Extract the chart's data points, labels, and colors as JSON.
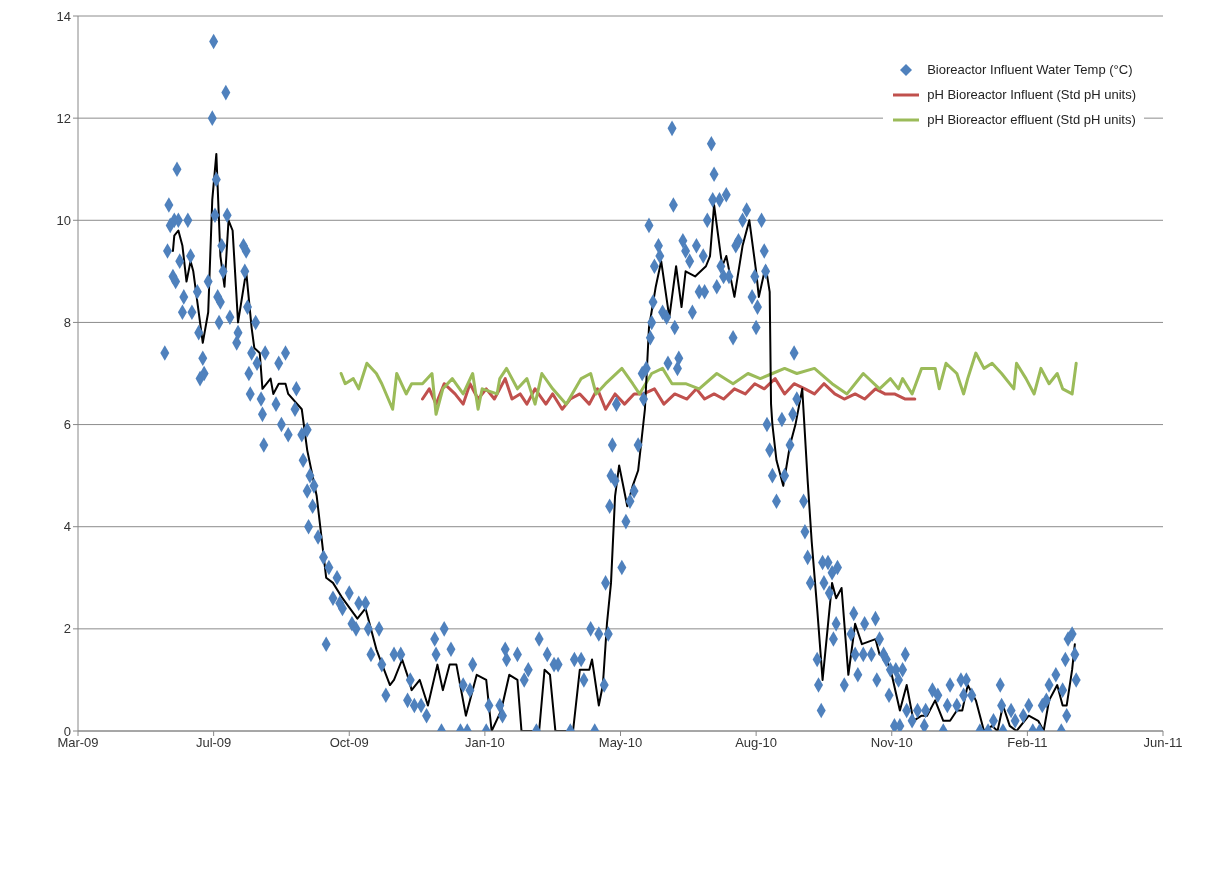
{
  "chart_data": {
    "type": "scatter",
    "xlim": [
      "2009-03-28",
      "2011-06-06"
    ],
    "xticks": [
      {
        "value": "2009-03-28",
        "label": "Mar-09"
      },
      {
        "value": "2009-07-06",
        "label": "Jul-09"
      },
      {
        "value": "2009-10-14",
        "label": "Oct-09"
      },
      {
        "value": "2010-01-22",
        "label": "Jan-10"
      },
      {
        "value": "2010-05-02",
        "label": "May-10"
      },
      {
        "value": "2010-08-10",
        "label": "Aug-10"
      },
      {
        "value": "2010-11-18",
        "label": "Nov-10"
      },
      {
        "value": "2011-02-26",
        "label": "Feb-11"
      },
      {
        "value": "2011-06-06",
        "label": "Jun-11"
      }
    ],
    "ylim": [
      0,
      14
    ],
    "yticks": [
      0,
      2,
      4,
      6,
      8,
      10,
      12,
      14
    ],
    "grid": "y",
    "legend": "top right",
    "series": [
      {
        "name": "Bioreactor Influent Water Temp (°C)",
        "color": "#4f81bd",
        "marker": "diamond",
        "x": [
          "2009-05-31",
          "2009-06-02",
          "2009-06-03",
          "2009-06-04",
          "2009-06-06",
          "2009-06-07",
          "2009-06-08",
          "2009-06-09",
          "2009-06-10",
          "2009-06-11",
          "2009-06-13",
          "2009-06-14",
          "2009-06-17",
          "2009-06-19",
          "2009-06-20",
          "2009-06-24",
          "2009-06-25",
          "2009-06-26",
          "2009-06-28",
          "2009-06-29",
          "2009-07-02",
          "2009-07-05",
          "2009-07-06",
          "2009-07-07",
          "2009-07-08",
          "2009-07-09",
          "2009-07-10",
          "2009-07-11",
          "2009-07-12",
          "2009-07-13",
          "2009-07-15",
          "2009-07-16",
          "2009-07-18",
          "2009-07-23",
          "2009-07-24",
          "2009-07-28",
          "2009-07-29",
          "2009-07-30",
          "2009-07-31",
          "2009-08-01",
          "2009-08-02",
          "2009-08-03",
          "2009-08-06",
          "2009-08-07",
          "2009-08-10",
          "2009-08-11",
          "2009-08-12",
          "2009-08-13",
          "2009-08-21",
          "2009-08-23",
          "2009-08-25",
          "2009-08-28",
          "2009-08-30",
          "2009-09-04",
          "2009-09-05",
          "2009-09-09",
          "2009-09-10",
          "2009-09-13",
          "2009-09-13",
          "2009-09-14",
          "2009-09-15",
          "2009-09-17",
          "2009-09-18",
          "2009-09-21",
          "2009-09-25",
          "2009-09-27",
          "2009-09-29",
          "2009-10-02",
          "2009-10-05",
          "2009-10-07",
          "2009-10-09",
          "2009-10-14",
          "2009-10-16",
          "2009-10-19",
          "2009-10-21",
          "2009-10-26",
          "2009-10-28",
          "2009-10-30",
          "2009-11-05",
          "2009-11-07",
          "2009-11-10",
          "2009-11-16",
          "2009-11-21",
          "2009-11-26",
          "2009-11-28",
          "2009-12-01",
          "2009-12-06",
          "2009-12-10",
          "2009-12-16",
          "2009-12-17",
          "2009-12-21",
          "2009-12-23",
          "2009-12-28",
          "2010-01-04",
          "2010-01-06",
          "2010-01-09",
          "2010-01-11",
          "2010-01-13",
          "2010-01-23",
          "2010-01-25",
          "2010-02-02",
          "2010-02-04",
          "2010-02-06",
          "2010-02-07",
          "2010-02-15",
          "2010-02-20",
          "2010-02-23",
          "2010-03-01",
          "2010-03-03",
          "2010-03-09",
          "2010-03-14",
          "2010-03-17",
          "2010-03-26",
          "2010-03-29",
          "2010-04-03",
          "2010-04-05",
          "2010-04-10",
          "2010-04-13",
          "2010-04-16",
          "2010-04-20",
          "2010-04-21",
          "2010-04-23",
          "2010-04-24",
          "2010-04-25",
          "2010-04-26",
          "2010-04-28",
          "2010-04-29",
          "2010-05-03",
          "2010-05-06",
          "2010-05-09",
          "2010-05-12",
          "2010-05-15",
          "2010-05-18",
          "2010-05-19",
          "2010-05-21",
          "2010-05-23",
          "2010-05-24",
          "2010-05-25",
          "2010-05-26",
          "2010-05-27",
          "2010-05-30",
          "2010-05-31",
          "2010-06-02",
          "2010-06-05",
          "2010-06-06",
          "2010-06-09",
          "2010-06-10",
          "2010-06-11",
          "2010-06-13",
          "2010-06-14",
          "2010-06-17",
          "2010-06-19",
          "2010-06-22",
          "2010-06-24",
          "2010-06-27",
          "2010-06-29",
          "2010-07-02",
          "2010-07-03",
          "2010-07-05",
          "2010-07-08",
          "2010-07-09",
          "2010-07-10",
          "2010-07-12",
          "2010-07-14",
          "2010-07-15",
          "2010-07-17",
          "2010-07-19",
          "2010-07-21",
          "2010-07-24",
          "2010-07-26",
          "2010-07-28",
          "2010-07-31",
          "2010-08-03",
          "2010-08-07",
          "2010-08-09",
          "2010-08-10",
          "2010-08-11",
          "2010-08-14",
          "2010-08-16",
          "2010-08-17",
          "2010-08-18",
          "2010-08-20",
          "2010-08-22",
          "2010-08-25",
          "2010-08-29",
          "2010-08-31",
          "2010-09-04",
          "2010-09-06",
          "2010-09-07",
          "2010-09-09",
          "2010-09-14",
          "2010-09-15",
          "2010-09-17",
          "2010-09-19",
          "2010-09-24",
          "2010-09-25",
          "2010-09-27",
          "2010-09-28",
          "2010-09-29",
          "2010-10-02",
          "2010-10-03",
          "2010-10-05",
          "2010-10-06",
          "2010-10-08",
          "2010-10-09",
          "2010-10-14",
          "2010-10-19",
          "2010-10-21",
          "2010-10-22",
          "2010-10-24",
          "2010-10-28",
          "2010-10-29",
          "2010-11-03",
          "2010-11-06",
          "2010-11-07",
          "2010-11-09",
          "2010-11-12",
          "2010-11-14",
          "2010-11-16",
          "2010-11-17",
          "2010-11-20",
          "2010-11-21",
          "2010-11-23",
          "2010-11-24",
          "2010-11-26",
          "2010-11-28",
          "2010-11-29",
          "2010-12-03",
          "2010-12-07",
          "2010-12-12",
          "2010-12-13",
          "2010-12-18",
          "2010-12-22",
          "2010-12-26",
          "2010-12-29",
          "2010-12-31",
          "2011-01-05",
          "2011-01-08",
          "2011-01-10",
          "2011-01-12",
          "2011-01-16",
          "2011-01-22",
          "2011-01-28",
          "2011-02-01",
          "2011-02-06",
          "2011-02-07",
          "2011-02-08",
          "2011-02-14",
          "2011-02-17",
          "2011-02-23",
          "2011-02-27",
          "2011-03-02",
          "2011-03-07",
          "2011-03-09",
          "2011-03-12",
          "2011-03-14",
          "2011-03-19",
          "2011-03-23",
          "2011-03-24",
          "2011-03-26",
          "2011-03-27",
          "2011-03-28",
          "2011-03-31",
          "2011-04-02",
          "2011-04-03"
        ],
        "values": [
          7.4,
          9.4,
          10.3,
          9.9,
          8.9,
          10.0,
          8.8,
          11.0,
          10.0,
          9.2,
          8.2,
          8.5,
          10.0,
          9.3,
          8.2,
          8.6,
          7.8,
          6.9,
          7.3,
          7.0,
          8.8,
          12.0,
          13.5,
          10.1,
          10.8,
          8.5,
          8.0,
          8.4,
          9.5,
          9.0,
          12.5,
          10.1,
          8.1,
          7.6,
          7.8,
          9.5,
          9.0,
          9.4,
          8.3,
          7.0,
          6.6,
          7.4,
          8.0,
          7.2,
          6.5,
          6.2,
          5.6,
          7.4,
          6.4,
          7.2,
          6.0,
          7.4,
          5.8,
          6.3,
          6.7,
          5.8,
          5.3,
          5.9,
          4.7,
          4.0,
          5.0,
          4.4,
          4.8,
          3.8,
          3.4,
          1.7,
          3.2,
          2.6,
          3.0,
          2.5,
          2.4,
          2.7,
          2.1,
          2.0,
          2.5,
          2.5,
          2.0,
          1.5,
          2.0,
          1.3,
          0.7,
          1.5,
          1.5,
          0.6,
          1.0,
          0.5,
          0.5,
          0.3,
          1.8,
          1.5,
          0.0,
          2.0,
          1.6,
          0.0,
          0.9,
          0.0,
          0.8,
          1.3,
          0.0,
          0.5,
          0.5,
          0.3,
          1.6,
          1.4,
          1.5,
          1.0,
          1.2,
          0.0,
          1.8,
          1.5,
          1.3,
          1.3,
          0.0,
          1.4,
          1.4,
          1.0,
          2.0,
          0.0,
          1.9,
          0.9,
          2.9,
          1.9,
          4.4,
          5.0,
          5.6,
          4.9,
          6.4,
          3.2,
          4.1,
          4.5,
          4.7,
          5.6,
          7.0,
          6.5,
          7.1,
          9.9,
          7.7,
          8.0,
          8.4,
          9.1,
          9.5,
          9.3,
          8.2,
          8.1,
          7.2,
          11.8,
          10.3,
          7.9,
          7.1,
          7.3,
          9.6,
          9.4,
          9.2,
          8.2,
          9.5,
          8.6,
          9.3,
          8.6,
          10.0,
          11.5,
          10.4,
          10.9,
          8.7,
          10.4,
          9.1,
          8.9,
          10.5,
          8.9,
          7.7,
          9.5,
          9.6,
          10.0,
          10.2,
          8.5,
          8.9,
          7.9,
          8.3,
          10.0,
          9.4,
          9.0,
          6.0,
          5.5,
          5.0,
          4.5,
          6.1,
          5.0,
          5.6,
          6.2,
          7.4,
          6.5,
          4.5,
          3.9,
          3.4,
          2.9,
          1.4,
          0.9,
          0.4,
          3.3,
          2.9,
          3.3,
          2.7,
          3.1,
          1.8,
          2.1,
          3.2,
          0.9,
          1.9,
          2.3,
          1.5,
          1.1,
          1.5,
          2.1,
          1.5,
          2.2,
          1.0,
          1.8,
          1.5,
          1.4,
          0.7,
          1.2,
          0.1,
          1.2,
          1.0,
          0.1,
          1.2,
          1.5,
          0.4,
          0.2,
          0.4,
          0.1,
          0.4,
          0.8,
          0.7,
          0.0,
          0.5,
          0.9,
          0.5,
          1.0,
          0.7,
          1.0,
          0.7,
          0.0,
          0.0,
          0.2,
          0.9,
          0.5,
          0.0,
          0.4,
          0.2,
          0.3,
          0.5,
          0.0,
          0.0,
          0.5,
          0.6,
          0.9,
          1.1,
          0.0,
          0.8,
          1.4,
          0.3,
          1.8,
          1.9,
          1.5,
          1.0
        ]
      },
      {
        "type": "line",
        "name": "pH Bioreactor Influent (Std pH units)",
        "color": "#c0504d",
        "marker": "none",
        "x": [
          "2009-12-07",
          "2009-12-12",
          "2009-12-17",
          "2009-12-23",
          "2009-12-31",
          "2010-01-06",
          "2010-01-11",
          "2010-01-17",
          "2010-01-23",
          "2010-01-29",
          "2010-02-06",
          "2010-02-11",
          "2010-02-17",
          "2010-02-22",
          "2010-02-28",
          "2010-03-08",
          "2010-03-13",
          "2010-03-20",
          "2010-03-26",
          "2010-04-02",
          "2010-04-09",
          "2010-04-15",
          "2010-04-21",
          "2010-04-28",
          "2010-05-05",
          "2010-05-12",
          "2010-05-19",
          "2010-05-27",
          "2010-06-03",
          "2010-06-11",
          "2010-06-20",
          "2010-06-27",
          "2010-07-03",
          "2010-07-10",
          "2010-07-17",
          "2010-07-25",
          "2010-08-02",
          "2010-08-09",
          "2010-08-16",
          "2010-08-24",
          "2010-08-31",
          "2010-09-07",
          "2010-09-15",
          "2010-09-22",
          "2010-09-29",
          "2010-10-07",
          "2010-10-14",
          "2010-10-22",
          "2010-10-29",
          "2010-11-06",
          "2010-11-13",
          "2010-11-20",
          "2010-11-28",
          "2010-12-05"
        ],
        "values": [
          6.5,
          6.7,
          6.4,
          6.8,
          6.6,
          6.4,
          6.8,
          6.5,
          6.7,
          6.5,
          6.9,
          6.5,
          6.6,
          6.4,
          6.7,
          6.4,
          6.6,
          6.3,
          6.5,
          6.6,
          6.4,
          6.7,
          6.3,
          6.6,
          6.4,
          6.6,
          6.6,
          6.7,
          6.4,
          6.6,
          6.5,
          6.7,
          6.5,
          6.6,
          6.5,
          6.7,
          6.6,
          6.8,
          6.7,
          6.9,
          6.6,
          6.8,
          6.7,
          6.6,
          6.8,
          6.6,
          6.5,
          6.6,
          6.5,
          6.7,
          6.6,
          6.6,
          6.5,
          6.5
        ]
      },
      {
        "type": "line",
        "name": "pH Bioreactor effluent (Std pH units)",
        "color": "#9bbb59",
        "marker": "none",
        "x": [
          "2009-10-08",
          "2009-10-11",
          "2009-10-17",
          "2009-10-21",
          "2009-10-27",
          "2009-11-03",
          "2009-11-07",
          "2009-11-15",
          "2009-11-18",
          "2009-11-25",
          "2009-11-29",
          "2009-12-07",
          "2009-12-14",
          "2009-12-17",
          "2009-12-22",
          "2009-12-29",
          "2010-01-06",
          "2010-01-13",
          "2010-01-17",
          "2010-01-20",
          "2010-01-31",
          "2010-02-02",
          "2010-02-07",
          "2010-02-15",
          "2010-02-22",
          "2010-02-28",
          "2010-03-05",
          "2010-03-13",
          "2010-03-23",
          "2010-04-03",
          "2010-04-10",
          "2010-04-14",
          "2010-04-21",
          "2010-05-03",
          "2010-05-11",
          "2010-05-16",
          "2010-05-25",
          "2010-06-02",
          "2010-06-09",
          "2010-06-19",
          "2010-06-29",
          "2010-07-12",
          "2010-07-24",
          "2010-08-04",
          "2010-08-13",
          "2010-08-22",
          "2010-08-31",
          "2010-09-09",
          "2010-09-22",
          "2010-10-05",
          "2010-10-16",
          "2010-10-28",
          "2010-11-09",
          "2010-11-17",
          "2010-11-23",
          "2010-11-26",
          "2010-12-03",
          "2010-12-10",
          "2010-12-20",
          "2010-12-23",
          "2010-12-28",
          "2011-01-05",
          "2011-01-10",
          "2011-01-13",
          "2011-01-19",
          "2011-01-25",
          "2011-01-31",
          "2011-02-07",
          "2011-02-16",
          "2011-02-18",
          "2011-02-25",
          "2011-03-03",
          "2011-03-08",
          "2011-03-14",
          "2011-03-20",
          "2011-03-24",
          "2011-03-31",
          "2011-04-03"
        ],
        "values": [
          7.0,
          6.8,
          6.9,
          6.7,
          7.2,
          7.0,
          6.8,
          6.3,
          7.0,
          6.6,
          6.8,
          6.8,
          7.0,
          6.2,
          6.7,
          6.9,
          6.6,
          7.0,
          6.3,
          6.7,
          6.6,
          6.9,
          7.1,
          6.7,
          6.9,
          6.4,
          7.0,
          6.7,
          6.4,
          6.9,
          7.0,
          6.6,
          6.8,
          7.1,
          6.8,
          6.6,
          7.0,
          7.1,
          6.8,
          6.8,
          6.7,
          7.0,
          6.8,
          7.0,
          6.9,
          7.0,
          7.1,
          7.0,
          7.1,
          6.8,
          6.6,
          7.0,
          6.7,
          6.9,
          6.7,
          6.9,
          6.6,
          7.1,
          7.1,
          6.7,
          7.2,
          7.0,
          6.6,
          6.9,
          7.4,
          7.1,
          7.2,
          7.0,
          6.7,
          7.2,
          6.9,
          6.6,
          7.1,
          6.8,
          7.0,
          6.7,
          6.6,
          7.2
        ]
      },
      {
        "type": "line",
        "color": "#000000",
        "marker": "none",
        "x": [
          "2009-06-06",
          "2009-06-07",
          "2009-06-10",
          "2009-06-13",
          "2009-06-16",
          "2009-06-19",
          "2009-06-21",
          "2009-06-28",
          "2009-07-02",
          "2009-07-05",
          "2009-07-08",
          "2009-07-11",
          "2009-07-14",
          "2009-07-17",
          "2009-07-20",
          "2009-07-24",
          "2009-07-30",
          "2009-08-03",
          "2009-08-05",
          "2009-08-09",
          "2009-08-11",
          "2009-08-17",
          "2009-08-19",
          "2009-08-23",
          "2009-08-28",
          "2009-08-30",
          "2009-09-09",
          "2009-09-13",
          "2009-09-20",
          "2009-09-27",
          "2009-10-02",
          "2009-10-09",
          "2009-10-20",
          "2009-10-26",
          "2009-11-03",
          "2009-11-13",
          "2009-11-16",
          "2009-11-22",
          "2009-11-27",
          "2009-11-29",
          "2009-12-05",
          "2009-12-11",
          "2009-12-18",
          "2009-12-22",
          "2009-12-27",
          "2010-01-01",
          "2010-01-08",
          "2010-01-16",
          "2010-01-23",
          "2010-01-27",
          "2010-02-03",
          "2010-02-09",
          "2010-02-15",
          "2010-02-18",
          "2010-03-03",
          "2010-03-07",
          "2010-03-11",
          "2010-03-15",
          "2010-03-28",
          "2010-04-02",
          "2010-04-09",
          "2010-04-11",
          "2010-04-16",
          "2010-04-19",
          "2010-04-22",
          "2010-04-25",
          "2010-04-28",
          "2010-05-01",
          "2010-05-07",
          "2010-05-11",
          "2010-05-15",
          "2010-05-20",
          "2010-05-23",
          "2010-05-28",
          "2010-06-01",
          "2010-06-07",
          "2010-06-12",
          "2010-06-16",
          "2010-06-19",
          "2010-06-26",
          "2010-07-04",
          "2010-07-07",
          "2010-07-10",
          "2010-07-16",
          "2010-07-19",
          "2010-07-25",
          "2010-07-31",
          "2010-08-05",
          "2010-08-10",
          "2010-08-12",
          "2010-08-17",
          "2010-08-20",
          "2010-08-21",
          "2010-08-22",
          "2010-08-25",
          "2010-08-30",
          "2010-09-04",
          "2010-09-08",
          "2010-09-13",
          "2010-09-17",
          "2010-09-20",
          "2010-09-24",
          "2010-09-28",
          "2010-10-05",
          "2010-10-08",
          "2010-10-12",
          "2010-10-17",
          "2010-10-22",
          "2010-10-27",
          "2010-11-06",
          "2010-11-09",
          "2010-11-13",
          "2010-11-18",
          "2010-11-24",
          "2010-11-29",
          "2010-12-04",
          "2010-12-10",
          "2010-12-14",
          "2010-12-20",
          "2010-12-26",
          "2010-12-31",
          "2011-01-05",
          "2011-01-09",
          "2011-01-13",
          "2011-01-19",
          "2011-01-25",
          "2011-01-31",
          "2011-02-04",
          "2011-02-08",
          "2011-02-13",
          "2011-02-18",
          "2011-02-27",
          "2011-03-06",
          "2011-03-10",
          "2011-03-14",
          "2011-03-20",
          "2011-03-24",
          "2011-03-27",
          "2011-03-31",
          "2011-04-02"
        ],
        "values": [
          9.4,
          9.7,
          9.8,
          9.5,
          8.8,
          9.2,
          9.0,
          7.6,
          8.2,
          10.4,
          11.3,
          9.3,
          8.7,
          10.0,
          9.8,
          8.0,
          9.0,
          7.9,
          7.5,
          7.4,
          6.7,
          6.9,
          6.6,
          6.8,
          6.8,
          6.6,
          6.3,
          5.5,
          4.6,
          3.0,
          2.9,
          2.6,
          2.2,
          2.4,
          1.6,
          0.9,
          1.0,
          1.4,
          1.0,
          0.8,
          1.0,
          0.5,
          1.3,
          0.8,
          1.3,
          1.3,
          0.3,
          1.1,
          1.0,
          0.0,
          0.4,
          1.1,
          1.0,
          0.0,
          0.0,
          1.2,
          1.1,
          0.0,
          0.0,
          1.2,
          1.2,
          1.4,
          0.5,
          0.9,
          2.1,
          2.9,
          4.6,
          5.2,
          4.4,
          4.8,
          5.1,
          6.3,
          7.9,
          8.7,
          9.2,
          8.1,
          9.1,
          8.3,
          9.0,
          8.9,
          9.1,
          9.3,
          10.3,
          9.1,
          9.3,
          8.5,
          9.5,
          10.0,
          9.0,
          8.5,
          9.1,
          8.6,
          6.4,
          6.0,
          5.3,
          4.8,
          5.6,
          6.0,
          6.7,
          4.9,
          3.7,
          2.4,
          1.0,
          2.9,
          2.6,
          2.8,
          1.1,
          2.1,
          1.7,
          1.8,
          1.5,
          1.5,
          1.1,
          0.4,
          0.9,
          0.2,
          0.3,
          0.3,
          0.6,
          0.2,
          0.2,
          0.4,
          0.4,
          0.9,
          0.6,
          0.0,
          0.1,
          0.0,
          0.5,
          0.1,
          0.0,
          0.3,
          0.2,
          0.0,
          0.6,
          0.9,
          0.5,
          0.5,
          1.2,
          1.7
        ]
      }
    ]
  }
}
